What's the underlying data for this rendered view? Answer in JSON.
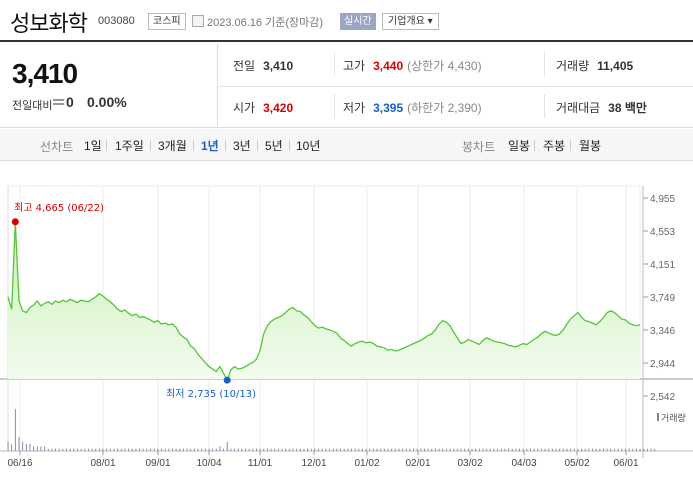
{
  "header": {
    "stock_name": "성보화학",
    "stock_code": "003080",
    "market": "코스피",
    "date_text": "2023.06.16 기준(장마감)",
    "realtime_label": "실시간",
    "company_button": "기업개요 ▾"
  },
  "summary": {
    "price": "3,410",
    "change_label": "전일대비",
    "change_value": "0",
    "change_percent": "0.00%",
    "prev_close": {
      "label": "전일",
      "value": "3,410"
    },
    "high": {
      "label": "고가",
      "value": "3,440",
      "sub": "(상한가 4,430)"
    },
    "volume": {
      "label": "거래량",
      "value": "11,405"
    },
    "open": {
      "label": "시가",
      "value": "3,420"
    },
    "low": {
      "label": "저가",
      "value": "3,395",
      "sub": "(하한가 2,390)"
    },
    "trade_amount": {
      "label": "거래대금",
      "value": "38 백만"
    }
  },
  "tabs": {
    "line_label": "선차트",
    "line_periods": [
      "1일",
      "1주일",
      "3개월",
      "1년",
      "3년",
      "5년",
      "10년"
    ],
    "active_period": "1년",
    "candle_label": "봉차트",
    "candle_periods": [
      "일봉",
      "주봉",
      "월봉"
    ]
  },
  "colors": {
    "line": "#57c43a",
    "area_top": "#c9f0b9",
    "area_bottom": "#f3fcef",
    "up": "#d60000",
    "down": "#1660c8",
    "volume": "#7a7fa0"
  },
  "chart_data": {
    "type": "area",
    "y_ticks": [
      "4,955",
      "4,553",
      "4,151",
      "3,749",
      "3,346",
      "2,944",
      "2,542"
    ],
    "ylim": [
      2542,
      4955
    ],
    "x_ticks": [
      "06/16",
      "08/01",
      "09/01",
      "10/04",
      "11/01",
      "12/01",
      "01/02",
      "02/01",
      "03/02",
      "04/03",
      "05/02",
      "06/01"
    ],
    "annotations": {
      "high": {
        "label": "최고 4,665 (06/22)",
        "value": 4665
      },
      "low": {
        "label": "최저 2,735 (10/13)",
        "value": 2735
      }
    },
    "volume_legend": "거래량",
    "series": [
      {
        "values": [
          3750,
          3600,
          4665,
          3700,
          3580,
          3560,
          3620,
          3650,
          3700,
          3640,
          3670,
          3690,
          3660,
          3700,
          3680,
          3710,
          3690,
          3720,
          3700,
          3680,
          3710,
          3700,
          3690,
          3720,
          3750,
          3790,
          3760,
          3720,
          3690,
          3650,
          3600,
          3570,
          3590,
          3550,
          3520,
          3540,
          3500,
          3510,
          3490,
          3470,
          3440,
          3460,
          3420,
          3430,
          3410,
          3420,
          3380,
          3300,
          3260,
          3230,
          3150,
          3120,
          3050,
          3000,
          2950,
          2900,
          2870,
          2840,
          2900,
          2820,
          2735,
          2860,
          2900,
          2870,
          2880,
          2900,
          2930,
          2950,
          2990,
          3100,
          3300,
          3400,
          3450,
          3480,
          3500,
          3520,
          3560,
          3600,
          3620,
          3580,
          3570,
          3530,
          3500,
          3450,
          3400,
          3370,
          3380,
          3360,
          3350,
          3330,
          3310,
          3250,
          3220,
          3180,
          3150,
          3180,
          3200,
          3210,
          3190,
          3200,
          3180,
          3150,
          3140,
          3130,
          3100,
          3110,
          3090,
          3100,
          3120,
          3140,
          3160,
          3180,
          3200,
          3220,
          3250,
          3280,
          3300,
          3350,
          3420,
          3460,
          3440,
          3400,
          3320,
          3250,
          3180,
          3200,
          3230,
          3210,
          3190,
          3170,
          3220,
          3250,
          3230,
          3210,
          3200,
          3190,
          3180,
          3160,
          3150,
          3140,
          3160,
          3180,
          3170,
          3200,
          3230,
          3260,
          3300,
          3330,
          3310,
          3290,
          3280,
          3300,
          3350,
          3420,
          3480,
          3520,
          3560,
          3500,
          3460,
          3450,
          3430,
          3410,
          3450,
          3500,
          3560,
          3580,
          3560,
          3520,
          3480,
          3470,
          3430,
          3410,
          3400,
          3410
        ]
      }
    ],
    "volume": [
      4,
      3,
      18,
      6,
      4,
      3,
      3,
      2,
      2,
      2,
      2,
      1,
      1,
      1,
      1,
      1,
      1,
      1,
      1,
      1,
      1,
      1,
      1,
      1,
      1,
      1,
      1,
      1,
      1,
      1,
      1,
      1,
      1,
      1,
      1,
      1,
      1,
      1,
      1,
      1,
      1,
      1,
      1,
      1,
      1,
      1,
      1,
      1,
      1,
      1,
      1,
      1,
      1,
      1,
      1,
      1,
      1,
      1,
      2,
      1,
      4,
      1,
      1,
      1,
      1,
      1,
      1,
      1,
      1,
      1,
      1,
      1,
      1,
      1,
      1,
      1,
      1,
      1,
      1,
      1,
      1,
      1,
      1,
      1,
      1,
      1,
      1,
      1,
      1,
      1,
      1,
      1,
      1,
      1,
      1,
      1,
      1,
      1,
      1,
      1,
      1,
      1,
      1,
      1,
      1,
      1,
      1,
      1,
      1,
      1,
      1,
      1,
      1,
      1,
      1,
      1,
      1,
      1,
      1,
      1,
      1,
      1,
      1,
      1,
      1,
      1,
      1,
      1,
      1,
      1,
      1,
      1,
      1,
      1,
      1,
      1,
      1,
      1,
      1,
      1,
      1,
      1,
      1,
      1,
      1,
      1,
      1,
      1,
      1,
      1,
      1,
      1,
      1,
      1,
      1,
      1,
      1,
      1,
      1,
      1,
      1,
      1,
      1,
      1,
      1,
      1,
      1,
      1,
      1,
      1,
      1,
      1,
      1,
      1,
      1,
      1,
      1,
      1
    ]
  }
}
